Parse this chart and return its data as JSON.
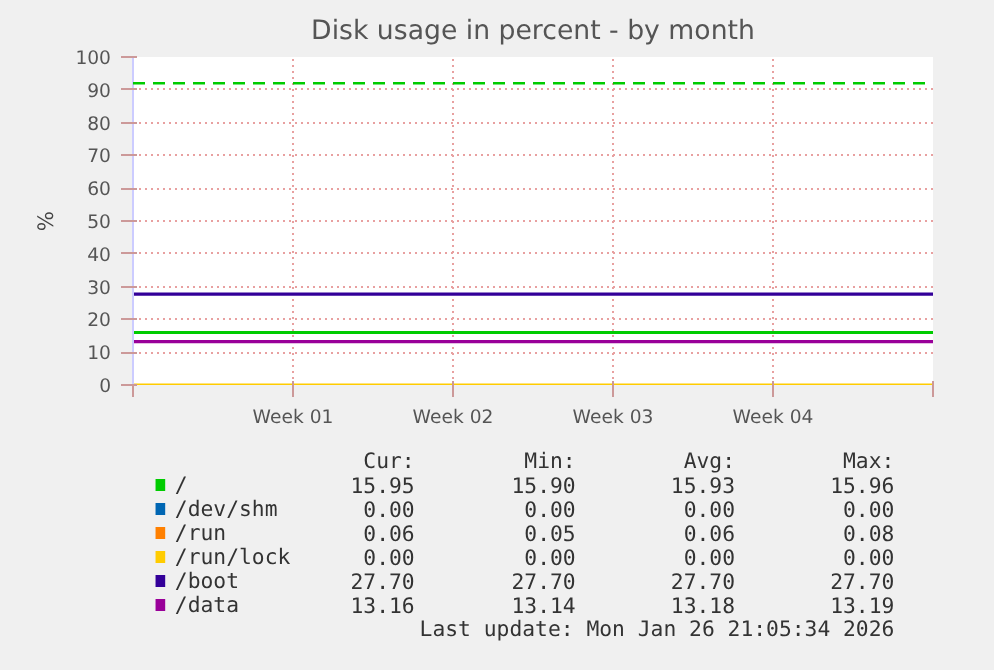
{
  "chart_data": {
    "type": "line",
    "title": "Disk usage in percent - by month",
    "ylabel": "%",
    "categories": [
      null,
      "Week 01",
      "Week 02",
      "Week 03",
      "Week 04",
      null
    ],
    "ylim": [
      0,
      100
    ],
    "yticks": [
      0,
      10,
      20,
      30,
      40,
      50,
      60,
      70,
      80,
      90,
      100
    ],
    "grid": true,
    "legend": "bottom",
    "marker": "none",
    "line_style": "solid",
    "series": [
      {
        "name": "/",
        "color": "#00cc00",
        "values": [
          16,
          16,
          16,
          16,
          16,
          16
        ]
      },
      {
        "name": "/dev/shm",
        "color": "#0066b3",
        "values": [
          null,
          null,
          null,
          null,
          null,
          null
        ]
      },
      {
        "name": "/run",
        "color": "#ff8000",
        "values": [
          null,
          null,
          null,
          null,
          null,
          null
        ]
      },
      {
        "name": "/run/lock",
        "color": "#ffcc00",
        "values": [
          0,
          0,
          0,
          0,
          0,
          0
        ]
      },
      {
        "name": "/boot",
        "color": "#330099",
        "values": [
          27.7,
          27.7,
          27.7,
          27.7,
          27.7,
          27.7
        ]
      },
      {
        "name": "/data",
        "color": "#990099",
        "values": [
          13.2,
          13.2,
          13.2,
          13.2,
          13.2,
          13.2
        ]
      }
    ],
    "ref_lines": [
      {
        "axis": "y",
        "value": 92,
        "label": null,
        "color": "#00cc00",
        "line_style": "dashed"
      }
    ],
    "annotations": [
      "Cur:",
      "Min:",
      "Avg:",
      "Max:",
      "15.95",
      "15.90",
      "15.93",
      "15.96",
      "0.00",
      "0.00",
      "0.00",
      "0.00",
      "0.06",
      "0.05",
      "0.06",
      "0.08",
      "0.00",
      "0.00",
      "0.00",
      "0.00",
      "27.70",
      "27.70",
      "27.70",
      "27.70",
      "13.16",
      "13.14",
      "13.18",
      "13.19",
      "Last update: Mon Jan 26 21:05:34 2026"
    ]
  }
}
